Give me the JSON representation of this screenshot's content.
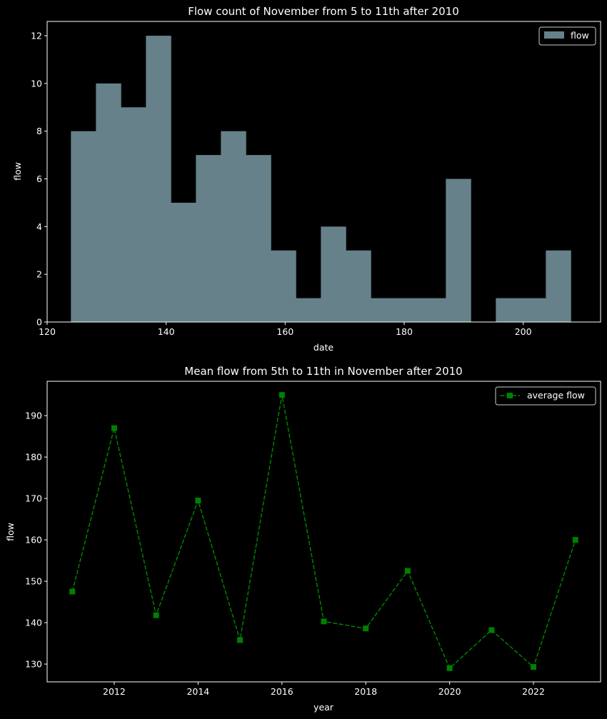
{
  "chart_data": [
    {
      "type": "bar",
      "title": "Flow count of November from 5 to 11th after 2010",
      "xlabel": "date",
      "ylabel": "flow",
      "xlim": [
        120,
        213
      ],
      "ylim": [
        0,
        12.6
      ],
      "xticks": [
        "120",
        "140",
        "160",
        "180",
        "200"
      ],
      "yticks": [
        "0",
        "2",
        "4",
        "6",
        "8",
        "10",
        "12"
      ],
      "legend": {
        "label": "flow",
        "position": "top-right"
      },
      "bar_color": "#668189",
      "bins": [
        {
          "x0": 124.0,
          "x1": 128.2,
          "value": 8
        },
        {
          "x0": 128.2,
          "x1": 132.4,
          "value": 10
        },
        {
          "x0": 132.4,
          "x1": 136.6,
          "value": 9
        },
        {
          "x0": 136.6,
          "x1": 140.8,
          "value": 12
        },
        {
          "x0": 140.8,
          "x1": 145.0,
          "value": 5
        },
        {
          "x0": 145.0,
          "x1": 149.2,
          "value": 7
        },
        {
          "x0": 149.2,
          "x1": 153.4,
          "value": 8
        },
        {
          "x0": 153.4,
          "x1": 157.6,
          "value": 7
        },
        {
          "x0": 157.6,
          "x1": 161.8,
          "value": 3
        },
        {
          "x0": 161.8,
          "x1": 166.0,
          "value": 1
        },
        {
          "x0": 166.0,
          "x1": 170.2,
          "value": 4
        },
        {
          "x0": 170.2,
          "x1": 174.4,
          "value": 3
        },
        {
          "x0": 174.4,
          "x1": 178.6,
          "value": 1
        },
        {
          "x0": 178.6,
          "x1": 182.8,
          "value": 1
        },
        {
          "x0": 182.8,
          "x1": 187.0,
          "value": 1
        },
        {
          "x0": 187.0,
          "x1": 191.2,
          "value": 6
        },
        {
          "x0": 191.2,
          "x1": 195.4,
          "value": 0
        },
        {
          "x0": 195.4,
          "x1": 199.6,
          "value": 1
        },
        {
          "x0": 199.6,
          "x1": 203.8,
          "value": 1
        },
        {
          "x0": 203.8,
          "x1": 208.0,
          "value": 3
        }
      ]
    },
    {
      "type": "line",
      "title": "Mean flow from 5th to 11th in November after 2010",
      "xlabel": "year",
      "ylabel": "flow",
      "xlim": [
        2010.4,
        2023.6
      ],
      "ylim": [
        125.7,
        198.3
      ],
      "xticks": [
        "2012",
        "2014",
        "2016",
        "2018",
        "2020",
        "2022"
      ],
      "yticks": [
        "130",
        "140",
        "150",
        "160",
        "170",
        "180",
        "190"
      ],
      "legend": {
        "label": "average flow",
        "position": "top-right"
      },
      "line_color": "#008000",
      "marker": "square",
      "linestyle": "dashed",
      "series": [
        {
          "name": "average flow",
          "x": [
            2011,
            2012,
            2013,
            2014,
            2015,
            2016,
            2017,
            2018,
            2019,
            2020,
            2021,
            2022,
            2023
          ],
          "y": [
            147.5,
            187,
            141.8,
            169.5,
            135.8,
            195,
            140.3,
            138.6,
            152.5,
            129,
            138.2,
            129.3,
            160
          ]
        }
      ]
    }
  ]
}
